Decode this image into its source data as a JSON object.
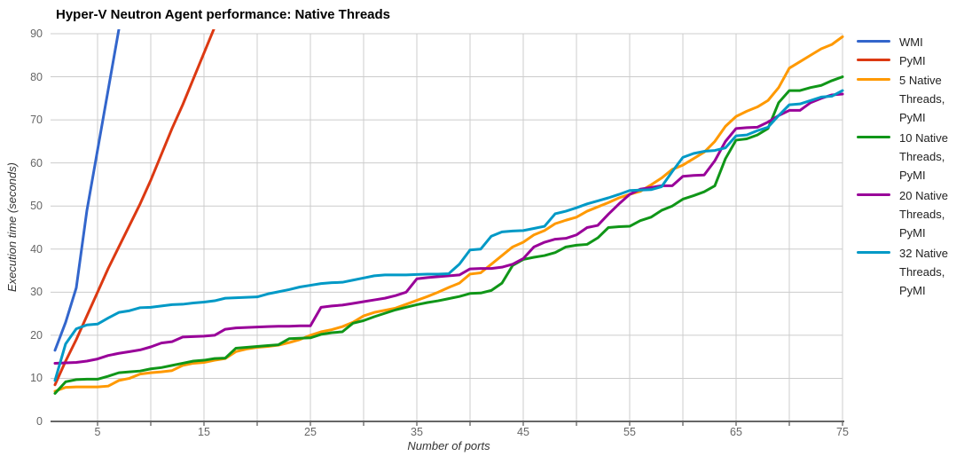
{
  "chart_data": {
    "type": "line",
    "title": "Hyper-V Neutron Agent performance: Native Threads",
    "xlabel": "Number of ports",
    "ylabel": "Execution time (seconds)",
    "xlim": [
      1,
      75
    ],
    "ylim": [
      0,
      90
    ],
    "x_tick_labels": [
      5,
      15,
      25,
      35,
      45,
      55,
      65,
      75
    ],
    "x_gridline_step": 5,
    "y_ticks": [
      0,
      10,
      20,
      30,
      40,
      50,
      60,
      70,
      80,
      90
    ],
    "grid": true,
    "legend_position": "right",
    "colors": {
      "gridline": "#cccccc",
      "axis_baseline": "#333333",
      "tick_text": "#666666",
      "title_text": "#000000",
      "background": "#ffffff"
    },
    "x": [
      1,
      2,
      3,
      4,
      5,
      6,
      7,
      8,
      9,
      10,
      11,
      12,
      13,
      14,
      15,
      16,
      17,
      18,
      19,
      20,
      21,
      22,
      23,
      24,
      25,
      26,
      27,
      28,
      29,
      30,
      31,
      32,
      33,
      34,
      35,
      36,
      37,
      38,
      39,
      40,
      41,
      42,
      43,
      44,
      45,
      46,
      47,
      48,
      49,
      50,
      51,
      52,
      53,
      54,
      55,
      56,
      57,
      58,
      59,
      60,
      61,
      62,
      63,
      64,
      65,
      66,
      67,
      68,
      69,
      70,
      71,
      72,
      73,
      74,
      75
    ],
    "series": [
      {
        "name": "WMI",
        "color": "#3366cc",
        "values": [
          16.5,
          23,
          31,
          49,
          63,
          77,
          91
        ]
      },
      {
        "name": "PyMI",
        "color": "#dc3912",
        "values": [
          8.5,
          14,
          19,
          24.5,
          30,
          35.5,
          40.5,
          45.5,
          50.5,
          56,
          62,
          68,
          73.5,
          79.5,
          85.5,
          91.5
        ]
      },
      {
        "name": "5 Native Threads, PyMI",
        "color": "#ff9900",
        "values": [
          7.0,
          7.9,
          8.0,
          8.0,
          8.0,
          8.2,
          9.5,
          10.0,
          11.0,
          11.3,
          11.5,
          11.8,
          13.0,
          13.5,
          13.7,
          14.2,
          14.6,
          16.2,
          16.8,
          17.2,
          17.4,
          17.7,
          18.3,
          19.0,
          20.0,
          20.8,
          21.3,
          22.0,
          23.0,
          24.5,
          25.3,
          25.8,
          26.3,
          27.2,
          28.1,
          29.0,
          30.0,
          31.1,
          32.1,
          34.2,
          34.5,
          36.5,
          38.5,
          40.5,
          41.6,
          43.3,
          44.3,
          45.9,
          46.7,
          47.4,
          48.8,
          49.8,
          50.8,
          51.9,
          52.7,
          53.4,
          54.9,
          56.5,
          58.5,
          59.5,
          61.0,
          62.5,
          65.0,
          68.5,
          70.8,
          72.0,
          73.0,
          74.5,
          77.5,
          82.0,
          83.5,
          85.0,
          86.5,
          87.5,
          89.3
        ]
      },
      {
        "name": "10 Native Threads, PyMI",
        "color": "#109618",
        "values": [
          6.5,
          9.2,
          9.7,
          9.8,
          9.8,
          10.5,
          11.3,
          11.5,
          11.7,
          12.2,
          12.5,
          13.0,
          13.5,
          14.0,
          14.2,
          14.6,
          14.7,
          17.0,
          17.2,
          17.4,
          17.6,
          17.8,
          19.2,
          19.3,
          19.4,
          20.2,
          20.6,
          20.8,
          22.8,
          23.4,
          24.3,
          25.1,
          25.9,
          26.5,
          27.1,
          27.6,
          28.0,
          28.5,
          29.0,
          29.7,
          29.8,
          30.4,
          32.1,
          36.2,
          37.6,
          38.1,
          38.5,
          39.2,
          40.5,
          40.9,
          41.1,
          42.6,
          45.0,
          45.2,
          45.3,
          46.6,
          47.4,
          49.0,
          50.0,
          51.6,
          52.4,
          53.3,
          54.7,
          61.0,
          65.3,
          65.6,
          66.5,
          68.0,
          74.0,
          76.8,
          76.8,
          77.5,
          78.0,
          79.1,
          80.0
        ]
      },
      {
        "name": "20 Native Threads, PyMI",
        "color": "#990099",
        "values": [
          13.5,
          13.6,
          13.7,
          14.0,
          14.5,
          15.3,
          15.8,
          16.2,
          16.6,
          17.3,
          18.2,
          18.5,
          19.6,
          19.7,
          19.8,
          20.0,
          21.4,
          21.7,
          21.8,
          21.9,
          22.0,
          22.1,
          22.1,
          22.2,
          22.2,
          26.5,
          26.8,
          27.0,
          27.4,
          27.8,
          28.2,
          28.6,
          29.2,
          30.0,
          33.1,
          33.4,
          33.6,
          33.8,
          34.0,
          35.4,
          35.5,
          35.5,
          35.8,
          36.5,
          37.8,
          40.5,
          41.6,
          42.3,
          42.5,
          43.3,
          45.0,
          45.5,
          48.1,
          50.5,
          52.7,
          53.9,
          54.3,
          54.7,
          54.7,
          56.9,
          57.1,
          57.2,
          60.5,
          65.0,
          68.0,
          68.2,
          68.3,
          69.5,
          71.0,
          72.2,
          72.2,
          74.0,
          75.0,
          75.8,
          76.0
        ]
      },
      {
        "name": "32 Native Threads, PyMI",
        "color": "#0099c6",
        "values": [
          9.5,
          18.0,
          21.5,
          22.4,
          22.6,
          24.0,
          25.3,
          25.7,
          26.4,
          26.5,
          26.8,
          27.1,
          27.2,
          27.5,
          27.7,
          28.0,
          28.6,
          28.7,
          28.8,
          28.9,
          29.6,
          30.1,
          30.6,
          31.2,
          31.6,
          32.0,
          32.2,
          32.3,
          32.8,
          33.3,
          33.8,
          34.0,
          34.0,
          34.0,
          34.1,
          34.2,
          34.2,
          34.3,
          36.5,
          39.8,
          40.0,
          43.0,
          44.0,
          44.2,
          44.3,
          44.8,
          45.3,
          48.2,
          48.8,
          49.6,
          50.5,
          51.2,
          51.9,
          52.7,
          53.6,
          53.7,
          53.8,
          54.5,
          58.0,
          61.3,
          62.2,
          62.7,
          62.9,
          63.5,
          66.3,
          66.5,
          67.5,
          68.3,
          71.0,
          73.5,
          73.7,
          74.5,
          75.3,
          75.5,
          76.8
        ]
      }
    ]
  }
}
